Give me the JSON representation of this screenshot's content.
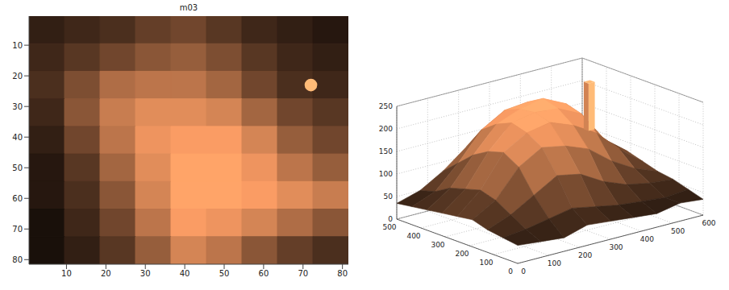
{
  "chart_data": [
    {
      "type": "heatmap",
      "title": "m03",
      "color": "copper",
      "clim": [
        0,
        255
      ],
      "xlim": [
        0.5,
        81.5
      ],
      "ylim": [
        81.5,
        0.5
      ],
      "xticks": [
        10,
        20,
        30,
        40,
        50,
        60,
        70,
        80
      ],
      "yticks": [
        10,
        20,
        30,
        40,
        50,
        60,
        70,
        80
      ],
      "x": [
        5,
        14,
        23,
        32,
        41,
        50,
        59,
        68,
        77
      ],
      "y": [
        5,
        14,
        23,
        32,
        41,
        50,
        59,
        68,
        77
      ],
      "z": [
        [
          40,
          50,
          60,
          80,
          90,
          70,
          50,
          40,
          30
        ],
        [
          50,
          70,
          90,
          110,
          120,
          100,
          70,
          50,
          40
        ],
        [
          60,
          100,
          140,
          150,
          150,
          130,
          90,
          60,
          50
        ],
        [
          50,
          110,
          160,
          180,
          180,
          170,
          130,
          90,
          70
        ],
        [
          40,
          90,
          150,
          190,
          200,
          200,
          170,
          120,
          90
        ],
        [
          30,
          70,
          130,
          180,
          210,
          210,
          190,
          150,
          120
        ],
        [
          30,
          60,
          110,
          170,
          210,
          210,
          200,
          180,
          160
        ],
        [
          20,
          50,
          90,
          150,
          200,
          190,
          170,
          140,
          110
        ],
        [
          20,
          40,
          70,
          120,
          170,
          150,
          110,
          80,
          60
        ]
      ],
      "spot": {
        "x": 72,
        "y": 23,
        "value": 240
      }
    },
    {
      "type": "surface",
      "color": "copper",
      "grid": true,
      "xlim": [
        0,
        600
      ],
      "ylim": [
        0,
        500
      ],
      "zlim": [
        0,
        250
      ],
      "xticks": [
        0,
        100,
        200,
        300,
        400,
        500,
        600
      ],
      "yticks": [
        0,
        100,
        200,
        300,
        400,
        500
      ],
      "zticks": [
        0,
        50,
        100,
        150,
        200,
        250
      ],
      "x": [
        0,
        75,
        150,
        225,
        300,
        375,
        450,
        525,
        600
      ],
      "y": [
        0,
        62.5,
        125,
        187.5,
        250,
        312.5,
        375,
        437.5,
        500
      ],
      "z": [
        [
          40,
          35,
          30,
          45,
          40,
          35,
          30,
          40,
          35
        ],
        [
          45,
          50,
          60,
          70,
          60,
          50,
          45,
          40,
          45
        ],
        [
          50,
          70,
          100,
          130,
          120,
          90,
          70,
          60,
          55
        ],
        [
          60,
          90,
          150,
          180,
          170,
          150,
          110,
          80,
          60
        ],
        [
          55,
          100,
          170,
          200,
          210,
          190,
          160,
          110,
          70
        ],
        [
          50,
          90,
          160,
          210,
          220,
          215,
          190,
          120,
          80
        ],
        [
          45,
          80,
          140,
          195,
          215,
          225,
          200,
          130,
          70
        ],
        [
          40,
          60,
          110,
          170,
          200,
          205,
          170,
          100,
          60
        ],
        [
          35,
          50,
          80,
          120,
          140,
          130,
          100,
          70,
          50
        ]
      ],
      "spike": {
        "x": 525,
        "y": 375,
        "value": 235
      }
    }
  ]
}
